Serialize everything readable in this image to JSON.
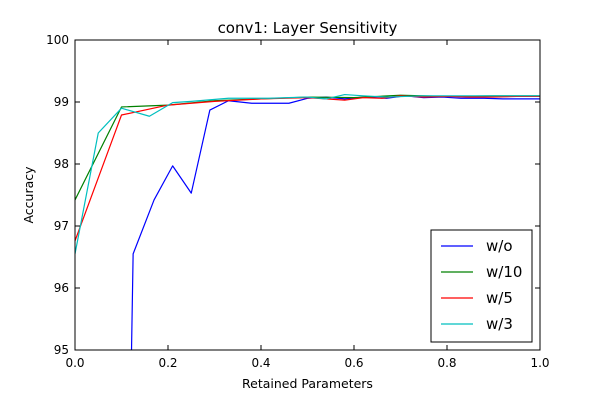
{
  "chart_data": {
    "type": "line",
    "title": "conv1: Layer Sensitivity",
    "xlabel": "Retained Parameters",
    "ylabel": "Accuracy",
    "xlim": [
      0.0,
      1.0
    ],
    "ylim": [
      95,
      100
    ],
    "xticks": [
      0.0,
      0.2,
      0.4,
      0.6,
      0.8,
      1.0
    ],
    "xtick_labels": [
      "0.0",
      "0.2",
      "0.4",
      "0.6",
      "0.8",
      "1.0"
    ],
    "yticks": [
      95,
      96,
      97,
      98,
      99,
      100
    ],
    "ytick_labels": [
      "95",
      "96",
      "97",
      "98",
      "99",
      "100"
    ],
    "grid": false,
    "legend_position": "lower-right",
    "series": [
      {
        "name": "w/o",
        "color": "#0000ff",
        "x": [
          0.12,
          0.125,
          0.17,
          0.21,
          0.25,
          0.29,
          0.33,
          0.38,
          0.42,
          0.46,
          0.5,
          0.54,
          0.58,
          0.62,
          0.67,
          0.71,
          0.75,
          0.79,
          0.83,
          0.88,
          0.92,
          0.96,
          1.0
        ],
        "y": [
          94.3,
          96.55,
          97.42,
          97.97,
          97.53,
          98.87,
          99.02,
          98.98,
          98.98,
          98.98,
          99.06,
          99.08,
          99.05,
          99.08,
          99.06,
          99.1,
          99.07,
          99.08,
          99.06,
          99.06,
          99.05,
          99.05,
          99.05
        ]
      },
      {
        "name": "w/10",
        "color": "#008000",
        "x": [
          0.0,
          0.1,
          0.2,
          0.3,
          0.4,
          0.5,
          0.6,
          0.7,
          0.8,
          0.9,
          1.0
        ],
        "y": [
          97.42,
          98.92,
          98.95,
          99.02,
          99.05,
          99.08,
          99.07,
          99.11,
          99.09,
          99.1,
          99.1
        ]
      },
      {
        "name": "w/5",
        "color": "#ff0000",
        "x": [
          0.0,
          0.1,
          0.2,
          0.3,
          0.4,
          0.5,
          0.54,
          0.58,
          0.62,
          0.66,
          0.7,
          0.75,
          0.8,
          0.85,
          0.9,
          0.95,
          1.0
        ],
        "y": [
          96.76,
          98.79,
          98.95,
          99.01,
          99.05,
          99.07,
          99.05,
          99.03,
          99.07,
          99.06,
          99.1,
          99.08,
          99.09,
          99.08,
          99.08,
          99.09,
          99.09
        ]
      },
      {
        "name": "w/3",
        "color": "#00bfbf",
        "x": [
          0.0,
          0.05,
          0.1,
          0.16,
          0.21,
          0.25,
          0.33,
          0.38,
          0.42,
          0.46,
          0.5,
          0.54,
          0.58,
          0.62,
          0.67,
          0.71,
          0.75,
          0.79,
          0.83,
          0.88,
          0.92,
          0.96,
          1.0
        ],
        "y": [
          96.55,
          98.5,
          98.9,
          98.77,
          98.99,
          99.01,
          99.06,
          99.06,
          99.06,
          99.07,
          99.08,
          99.05,
          99.12,
          99.1,
          99.08,
          99.09,
          99.1,
          99.1,
          99.1,
          99.1,
          99.1,
          99.1,
          99.1
        ]
      }
    ]
  }
}
